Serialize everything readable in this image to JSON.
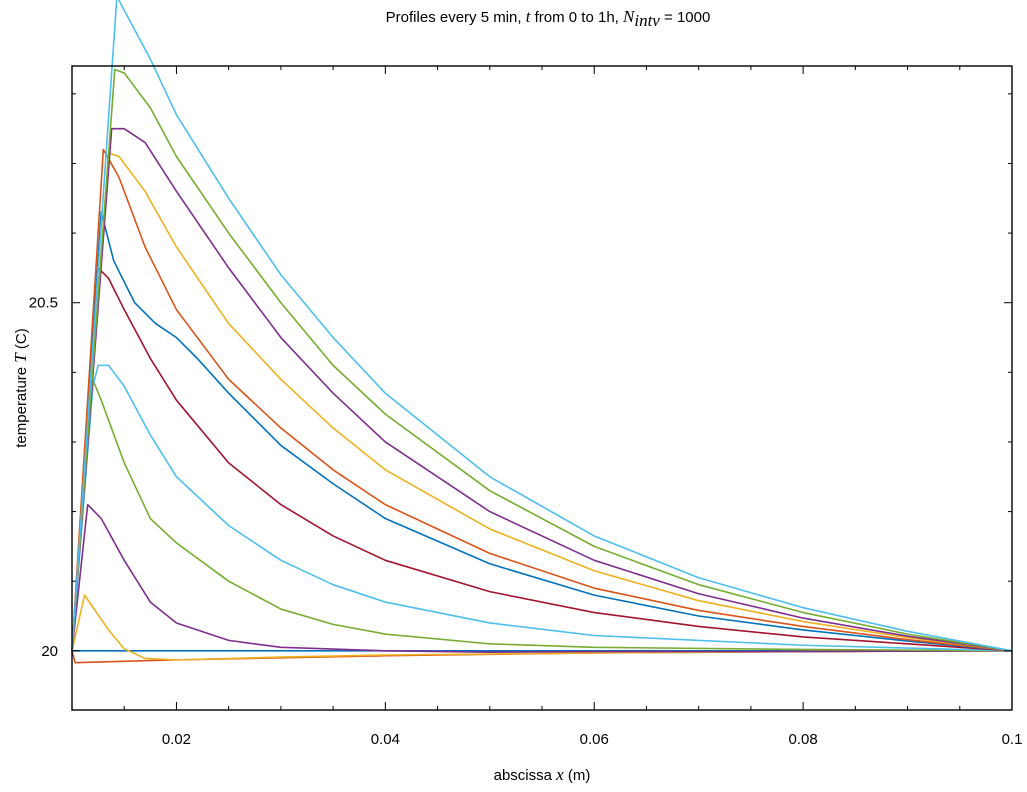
{
  "chart_data": {
    "type": "line",
    "title": {
      "prefix": "Profiles every 5 min, ",
      "t_symbol": "t",
      "middle": " from 0 to 1h, ",
      "n_symbol": "N",
      "n_subscript": "intv",
      "suffix": " = 1000"
    },
    "xlabel": {
      "text": "abscissa ",
      "symbol": "x",
      "unit": " (m)"
    },
    "ylabel": {
      "text": "temperature ",
      "symbol": "T",
      "unit": " (C)"
    },
    "xlim": [
      0.01,
      0.1
    ],
    "ylim": [
      19.915,
      20.84
    ],
    "x_ticks": [
      0.02,
      0.04,
      0.06,
      0.08,
      0.1
    ],
    "x_tick_labels": [
      "0.02",
      "0.04",
      "0.06",
      "0.08",
      "0.1"
    ],
    "y_ticks": [
      20,
      20.5
    ],
    "y_tick_labels": [
      "20",
      "20.5"
    ],
    "grid": false,
    "legend": "none",
    "series": [
      {
        "color": "#0072bd",
        "points": [
          [
            0.01,
            20
          ],
          [
            0.1,
            20
          ]
        ]
      },
      {
        "color": "#d95319",
        "points": [
          [
            0.01,
            20
          ],
          [
            0.0103,
            19.983
          ],
          [
            0.02,
            19.987
          ],
          [
            0.04,
            19.993
          ],
          [
            0.06,
            19.997
          ],
          [
            0.08,
            19.999
          ],
          [
            0.1,
            20
          ]
        ]
      },
      {
        "color": "#edb120",
        "points": [
          [
            0.01,
            20
          ],
          [
            0.0112,
            20.08
          ],
          [
            0.0135,
            20.03
          ],
          [
            0.015,
            20.003
          ],
          [
            0.017,
            19.989
          ],
          [
            0.02,
            19.987
          ],
          [
            0.03,
            19.991
          ],
          [
            0.04,
            19.994
          ],
          [
            0.06,
            19.997
          ],
          [
            0.08,
            19.999
          ],
          [
            0.1,
            20
          ]
        ]
      },
      {
        "color": "#7e2f8e",
        "points": [
          [
            0.01,
            20
          ],
          [
            0.0115,
            20.21
          ],
          [
            0.0128,
            20.19
          ],
          [
            0.015,
            20.13
          ],
          [
            0.0175,
            20.07
          ],
          [
            0.02,
            20.04
          ],
          [
            0.025,
            20.015
          ],
          [
            0.03,
            20.005
          ],
          [
            0.04,
            20.0
          ],
          [
            0.05,
            19.998
          ],
          [
            0.06,
            19.999
          ],
          [
            0.08,
            19.999
          ],
          [
            0.1,
            20
          ]
        ]
      },
      {
        "color": "#77ac30",
        "points": [
          [
            0.01,
            20
          ],
          [
            0.0117,
            20.4
          ],
          [
            0.0128,
            20.36
          ],
          [
            0.015,
            20.27
          ],
          [
            0.0175,
            20.19
          ],
          [
            0.02,
            20.155
          ],
          [
            0.025,
            20.1
          ],
          [
            0.03,
            20.06
          ],
          [
            0.035,
            20.038
          ],
          [
            0.04,
            20.024
          ],
          [
            0.05,
            20.01
          ],
          [
            0.06,
            20.005
          ],
          [
            0.08,
            20.002
          ],
          [
            0.1,
            20
          ]
        ]
      },
      {
        "color": "#4dbeee",
        "points": [
          [
            0.01,
            20
          ],
          [
            0.012,
            20.38
          ],
          [
            0.0125,
            20.41
          ],
          [
            0.0135,
            20.41
          ],
          [
            0.015,
            20.38
          ],
          [
            0.0175,
            20.31
          ],
          [
            0.02,
            20.25
          ],
          [
            0.025,
            20.18
          ],
          [
            0.03,
            20.13
          ],
          [
            0.035,
            20.095
          ],
          [
            0.04,
            20.07
          ],
          [
            0.05,
            20.04
          ],
          [
            0.06,
            20.022
          ],
          [
            0.08,
            20.008
          ],
          [
            0.1,
            20
          ]
        ]
      },
      {
        "color": "#a2142f",
        "points": [
          [
            0.01,
            20
          ],
          [
            0.0125,
            20.55
          ],
          [
            0.0135,
            20.535
          ],
          [
            0.015,
            20.49
          ],
          [
            0.0175,
            20.42
          ],
          [
            0.02,
            20.36
          ],
          [
            0.025,
            20.27
          ],
          [
            0.03,
            20.21
          ],
          [
            0.035,
            20.165
          ],
          [
            0.04,
            20.13
          ],
          [
            0.05,
            20.085
          ],
          [
            0.06,
            20.055
          ],
          [
            0.07,
            20.035
          ],
          [
            0.08,
            20.02
          ],
          [
            0.09,
            20.01
          ],
          [
            0.1,
            20
          ]
        ]
      },
      {
        "color": "#0072bd",
        "points": [
          [
            0.01,
            20
          ],
          [
            0.0128,
            20.63
          ],
          [
            0.014,
            20.56
          ],
          [
            0.016,
            20.5
          ],
          [
            0.018,
            20.47
          ],
          [
            0.02,
            20.45
          ],
          [
            0.022,
            20.42
          ],
          [
            0.025,
            20.37
          ],
          [
            0.03,
            20.295
          ],
          [
            0.035,
            20.24
          ],
          [
            0.04,
            20.19
          ],
          [
            0.05,
            20.125
          ],
          [
            0.06,
            20.08
          ],
          [
            0.07,
            20.05
          ],
          [
            0.08,
            20.03
          ],
          [
            0.09,
            20.014
          ],
          [
            0.1,
            20
          ]
        ]
      },
      {
        "color": "#d95319",
        "points": [
          [
            0.01,
            20
          ],
          [
            0.013,
            20.72
          ],
          [
            0.0145,
            20.68
          ],
          [
            0.017,
            20.58
          ],
          [
            0.02,
            20.49
          ],
          [
            0.025,
            20.39
          ],
          [
            0.03,
            20.32
          ],
          [
            0.035,
            20.26
          ],
          [
            0.04,
            20.21
          ],
          [
            0.05,
            20.14
          ],
          [
            0.06,
            20.09
          ],
          [
            0.07,
            20.058
          ],
          [
            0.08,
            20.035
          ],
          [
            0.09,
            20.016
          ],
          [
            0.1,
            20
          ]
        ]
      },
      {
        "color": "#edb120",
        "points": [
          [
            0.01,
            20
          ],
          [
            0.0135,
            20.715
          ],
          [
            0.0145,
            20.71
          ],
          [
            0.017,
            20.66
          ],
          [
            0.02,
            20.58
          ],
          [
            0.025,
            20.47
          ],
          [
            0.03,
            20.39
          ],
          [
            0.035,
            20.32
          ],
          [
            0.04,
            20.26
          ],
          [
            0.05,
            20.175
          ],
          [
            0.06,
            20.115
          ],
          [
            0.07,
            20.072
          ],
          [
            0.08,
            20.042
          ],
          [
            0.09,
            20.019
          ],
          [
            0.1,
            20
          ]
        ]
      },
      {
        "color": "#7e2f8e",
        "points": [
          [
            0.01,
            20
          ],
          [
            0.0138,
            20.75
          ],
          [
            0.015,
            20.75
          ],
          [
            0.017,
            20.73
          ],
          [
            0.02,
            20.66
          ],
          [
            0.025,
            20.55
          ],
          [
            0.03,
            20.45
          ],
          [
            0.035,
            20.37
          ],
          [
            0.04,
            20.3
          ],
          [
            0.05,
            20.2
          ],
          [
            0.06,
            20.13
          ],
          [
            0.07,
            20.082
          ],
          [
            0.08,
            20.047
          ],
          [
            0.09,
            20.021
          ],
          [
            0.1,
            20
          ]
        ]
      },
      {
        "color": "#77ac30",
        "points": [
          [
            0.01,
            20
          ],
          [
            0.0141,
            20.835
          ],
          [
            0.015,
            20.83
          ],
          [
            0.0175,
            20.78
          ],
          [
            0.02,
            20.71
          ],
          [
            0.025,
            20.6
          ],
          [
            0.03,
            20.5
          ],
          [
            0.035,
            20.41
          ],
          [
            0.04,
            20.34
          ],
          [
            0.05,
            20.23
          ],
          [
            0.06,
            20.15
          ],
          [
            0.07,
            20.095
          ],
          [
            0.08,
            20.055
          ],
          [
            0.09,
            20.024
          ],
          [
            0.1,
            20
          ]
        ]
      },
      {
        "color": "#4dbeee",
        "points": [
          [
            0.01,
            20
          ],
          [
            0.0143,
            20.94
          ],
          [
            0.015,
            20.92
          ],
          [
            0.0175,
            20.85
          ],
          [
            0.02,
            20.77
          ],
          [
            0.025,
            20.65
          ],
          [
            0.03,
            20.54
          ],
          [
            0.035,
            20.45
          ],
          [
            0.04,
            20.37
          ],
          [
            0.05,
            20.25
          ],
          [
            0.06,
            20.165
          ],
          [
            0.07,
            20.105
          ],
          [
            0.08,
            20.062
          ],
          [
            0.09,
            20.028
          ],
          [
            0.1,
            20
          ]
        ]
      }
    ]
  }
}
